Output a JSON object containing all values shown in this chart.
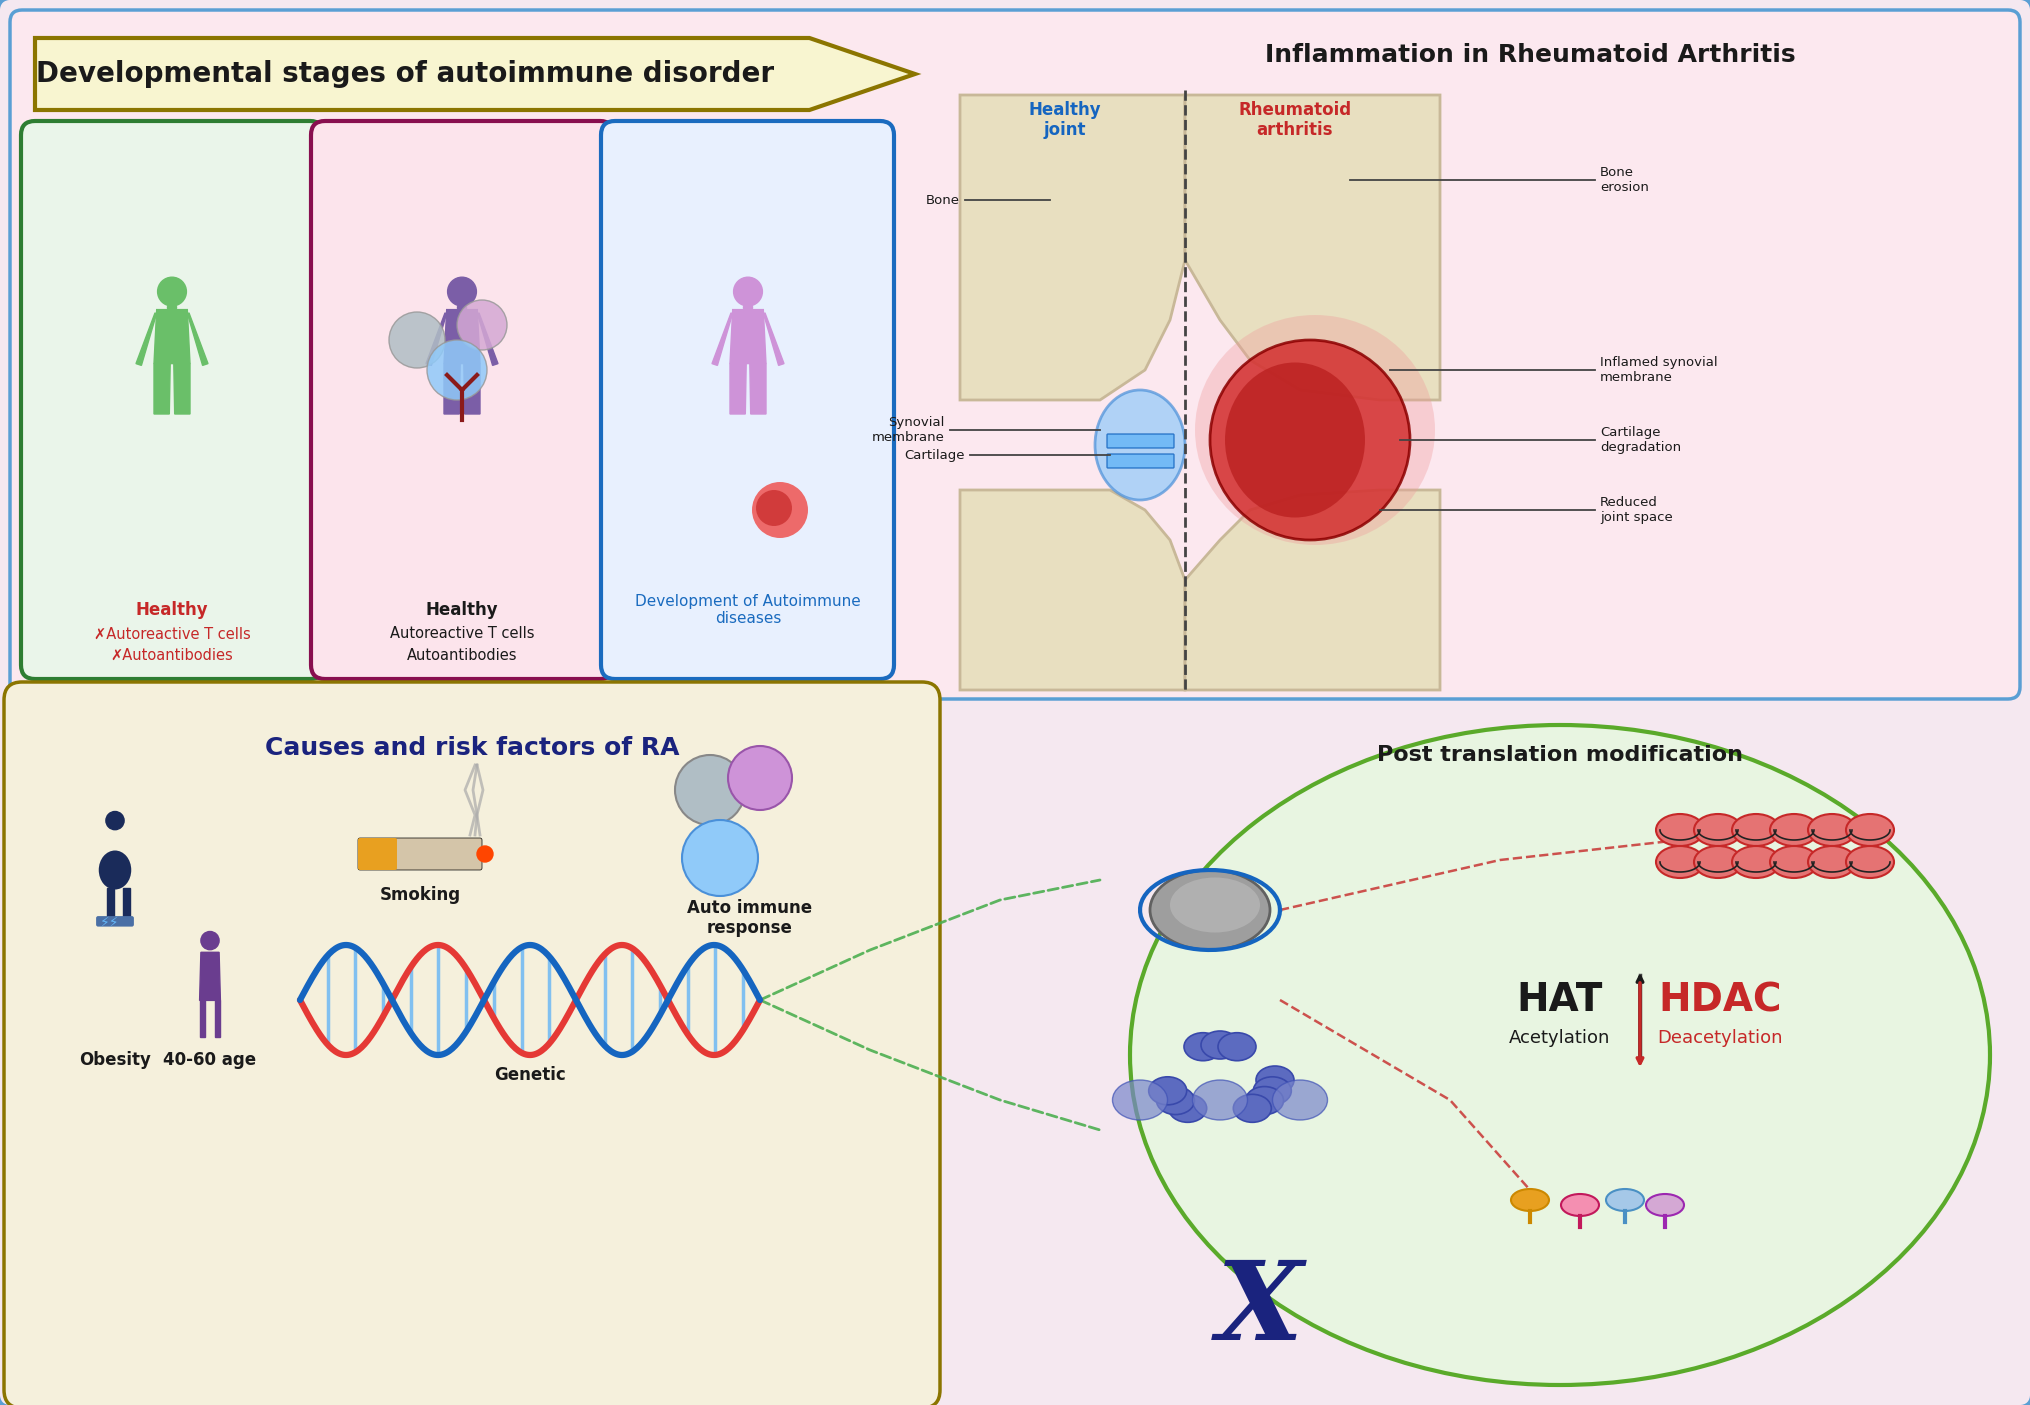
{
  "bg_color": "#f5e8f0",
  "outer_border_color": "#5a9fd4",
  "fig_width": 20.3,
  "fig_height": 14.05,
  "top_panel_bg": "#fce8ef",
  "top_panel_border": "#5a9fd4",
  "arrow_banner_bg": "#f8f5d0",
  "arrow_banner_border": "#8B7500",
  "arrow_banner_text": "Developmental stages of autoimmune disorder",
  "arrow_banner_fontsize": 20,
  "inflammation_title": "Inflammation in Rheumatoid Arthritis",
  "inflammation_fontsize": 18,
  "panel1_bg": "#eaf5ea",
  "panel1_border": "#2e7d32",
  "panel1_figure_color": "#6abf69",
  "panel1_title": "Healthy",
  "panel1_line1": "✗Autoreactive T cells",
  "panel1_line2": "✗Autoantibodies",
  "panel1_text_color": "#c62828",
  "panel1_title_color": "#c62828",
  "panel2_bg": "#fce4ec",
  "panel2_border": "#880e4f",
  "panel2_figure_color": "#7b5ea7",
  "panel2_title": "Healthy",
  "panel2_line1": "Autoreactive T cells",
  "panel2_line2": "Autoantibodies",
  "panel2_text_color": "#1a1a1a",
  "panel2_title_color": "#1a1a1a",
  "panel3_bg": "#e8f0fe",
  "panel3_border": "#1a6bbf",
  "panel3_figure_color": "#ce93d8",
  "panel3_title": "Development of Autoimmune\ndiseases",
  "panel3_text_color": "#1a6bbf",
  "healthy_joint_label": "Healthy\njoint",
  "healthy_joint_color": "#1565c0",
  "rheumatoid_label": "Rheumatoid\narthritis",
  "rheumatoid_color": "#c62828",
  "bottom_panel_bg": "#f5f0dc",
  "bottom_panel_border": "#8B7500",
  "causes_title": "Causes and risk factors of RA",
  "causes_title_color": "#1a237e",
  "causes_fontsize": 18,
  "obesity_label": "Obesity",
  "smoking_label": "Smoking",
  "autoimmune_label": "Auto immune\nresponse",
  "genetic_label": "Genetic",
  "age_label": "40-60 age",
  "ptm_panel_bg": "#e8f5e1",
  "ptm_panel_border": "#5aaa2a",
  "ptm_title": "Post translation modification",
  "ptm_title_fontsize": 16,
  "hat_label": "HAT",
  "hat_sublabel": "Acetylation",
  "hdac_label": "HDAC",
  "hdac_sublabel": "Deacetylation",
  "hat_color": "#1a1a1a",
  "hdac_color": "#c62828"
}
